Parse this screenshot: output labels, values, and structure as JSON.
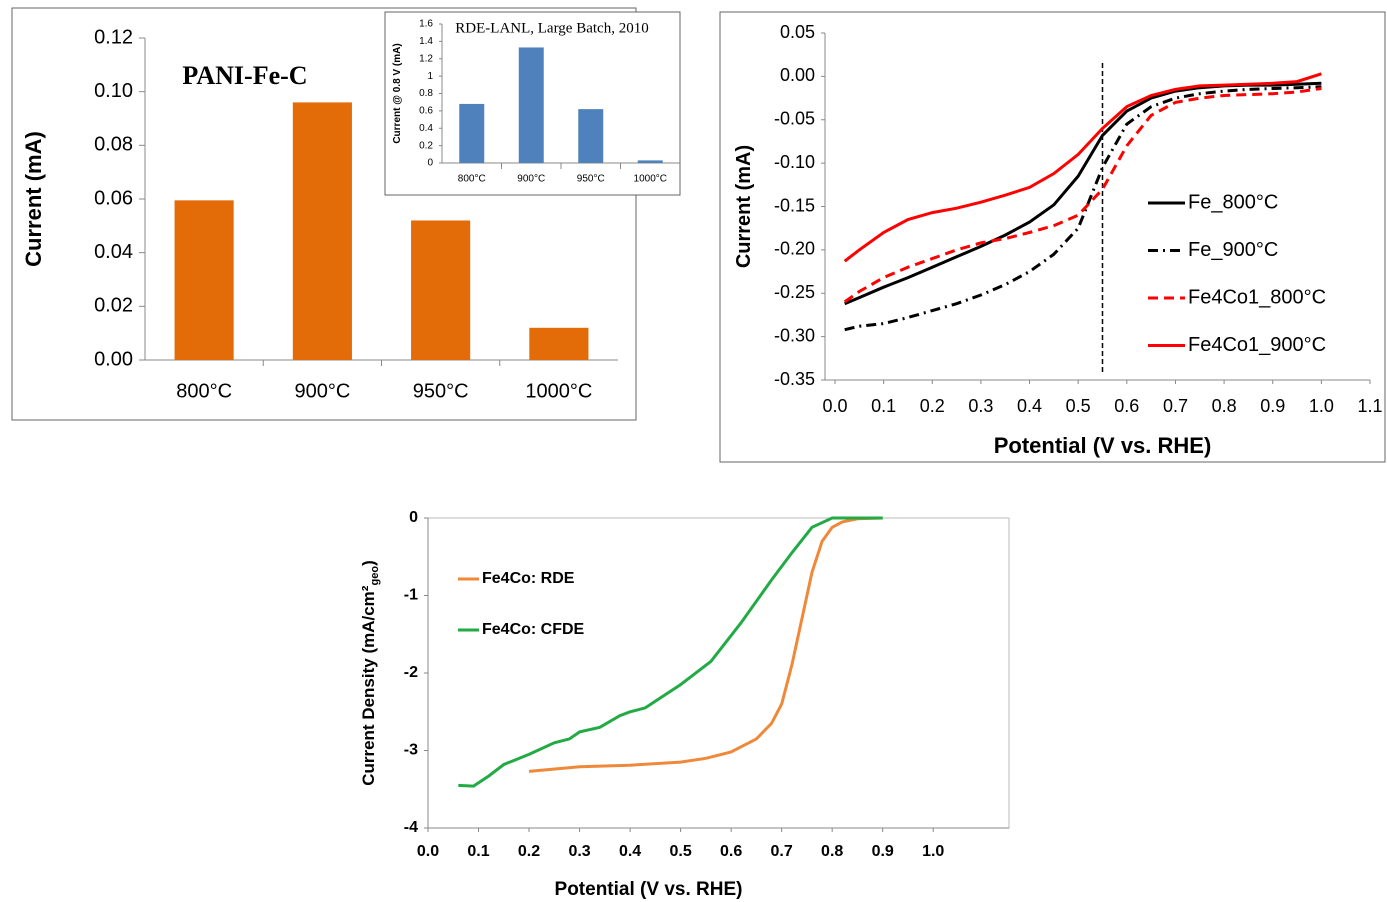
{
  "chart_data": [
    {
      "type": "bar",
      "annotation": "PANI-Fe-C",
      "ylabel": "Current (mA)",
      "categories": [
        "800°C",
        "900°C",
        "950°C",
        "1000°C"
      ],
      "values": [
        0.0595,
        0.096,
        0.052,
        0.012
      ],
      "color": "#e36c09",
      "ylim": [
        0,
        0.12
      ],
      "yticks": [
        {
          "value": 0,
          "label": "0.00"
        },
        0.02,
        0.04,
        0.06,
        0.08,
        {
          "value": 0.1,
          "label": "0.10"
        },
        0.12
      ]
    },
    {
      "type": "bar",
      "title": "RDE-LANL, Large Batch, 2010",
      "ylabel": "Current @ 0.8 V (mA)",
      "categories": [
        "800°C",
        "900°C",
        "950°C",
        "1000°C"
      ],
      "values": [
        0.68,
        1.33,
        0.62,
        0.03
      ],
      "color": "#4f81bd",
      "ylim": [
        0,
        1.6
      ],
      "yticks": [
        0,
        0.2,
        0.4,
        0.6,
        0.8,
        1,
        1.2,
        1.4,
        1.6
      ]
    },
    {
      "type": "line",
      "xlabel": "Potential (V vs. RHE)",
      "ylabel": "Current (mA)",
      "x": [
        0.02,
        0.05,
        0.1,
        0.15,
        0.2,
        0.25,
        0.3,
        0.35,
        0.4,
        0.45,
        0.5,
        0.55,
        0.6,
        0.65,
        0.7,
        0.75,
        0.8,
        0.85,
        0.9,
        0.95,
        1.0
      ],
      "series": [
        {
          "name": "Fe_800°C",
          "color": "#000000",
          "style": "solid",
          "values": [
            -0.262,
            -0.255,
            -0.243,
            -0.232,
            -0.22,
            -0.208,
            -0.196,
            -0.183,
            -0.168,
            -0.148,
            -0.115,
            -0.068,
            -0.04,
            -0.025,
            -0.017,
            -0.013,
            -0.011,
            -0.01,
            -0.01,
            -0.009,
            -0.008
          ]
        },
        {
          "name": "Fe_900°C",
          "color": "#000000",
          "style": "dashdot",
          "values": [
            -0.292,
            -0.288,
            -0.285,
            -0.278,
            -0.27,
            -0.262,
            -0.252,
            -0.24,
            -0.225,
            -0.205,
            -0.175,
            -0.105,
            -0.055,
            -0.035,
            -0.025,
            -0.02,
            -0.017,
            -0.015,
            -0.014,
            -0.013,
            -0.012
          ]
        },
        {
          "name": "Fe4Co1_800°C",
          "color": "#ff0000",
          "style": "dashed",
          "values": [
            -0.26,
            -0.248,
            -0.232,
            -0.22,
            -0.21,
            -0.2,
            -0.192,
            -0.187,
            -0.18,
            -0.172,
            -0.16,
            -0.13,
            -0.08,
            -0.045,
            -0.03,
            -0.025,
            -0.022,
            -0.021,
            -0.02,
            -0.018,
            -0.014
          ]
        },
        {
          "name": "Fe4Co1_900°C",
          "color": "#ff0000",
          "style": "solid",
          "values": [
            -0.213,
            -0.2,
            -0.18,
            -0.165,
            -0.157,
            -0.152,
            -0.145,
            -0.137,
            -0.128,
            -0.112,
            -0.09,
            -0.06,
            -0.035,
            -0.022,
            -0.015,
            -0.011,
            -0.01,
            -0.009,
            -0.008,
            -0.006,
            0.003
          ]
        }
      ],
      "vline": 0.55,
      "xlim": [
        0,
        1.1
      ],
      "xticks": [
        {
          "value": 0,
          "label": "0.0"
        },
        0.1,
        0.2,
        0.3,
        0.4,
        0.5,
        0.6,
        0.7,
        0.8,
        0.9,
        {
          "value": 1,
          "label": "1.0"
        },
        1.1
      ],
      "ylim": [
        -0.35,
        0.05
      ],
      "yticks": [
        0.05,
        {
          "value": 0,
          "label": "0.00"
        },
        -0.05,
        {
          "value": -0.1,
          "label": "-0.10"
        },
        -0.15,
        {
          "value": -0.2,
          "label": "-0.20"
        },
        -0.25,
        {
          "value": -0.3,
          "label": "-0.30"
        },
        -0.35
      ],
      "legend": "right"
    },
    {
      "type": "line",
      "xlabel": "Potential (V vs. RHE)",
      "ylabel": "Current Density (mA/cm²",
      "ylabel_sub": "geo",
      "ylabel_end": ")",
      "series": [
        {
          "name": "Fe4Co: RDE",
          "color": "#f0883a",
          "style": "solid",
          "x": [
            0.2,
            0.3,
            0.4,
            0.5,
            0.55,
            0.6,
            0.65,
            0.68,
            0.7,
            0.72,
            0.74,
            0.76,
            0.78,
            0.8,
            0.82,
            0.85,
            0.9
          ],
          "values": [
            -3.27,
            -3.21,
            -3.19,
            -3.15,
            -3.1,
            -3.02,
            -2.85,
            -2.65,
            -2.4,
            -1.9,
            -1.3,
            -0.7,
            -0.3,
            -0.12,
            -0.05,
            -0.01,
            0
          ]
        },
        {
          "name": "Fe4Co: CFDE",
          "color": "#22aa44",
          "style": "solid",
          "x": [
            0.06,
            0.09,
            0.12,
            0.15,
            0.2,
            0.25,
            0.28,
            0.3,
            0.34,
            0.38,
            0.4,
            0.43,
            0.5,
            0.56,
            0.62,
            0.68,
            0.72,
            0.76,
            0.8,
            0.9
          ],
          "values": [
            -3.45,
            -3.46,
            -3.33,
            -3.18,
            -3.05,
            -2.9,
            -2.85,
            -2.76,
            -2.7,
            -2.55,
            -2.5,
            -2.45,
            -2.15,
            -1.85,
            -1.35,
            -0.8,
            -0.45,
            -0.12,
            0,
            0
          ]
        }
      ],
      "xlim": [
        0,
        1.15
      ],
      "xticks": [
        {
          "value": 0,
          "label": "0.0"
        },
        0.1,
        0.2,
        0.3,
        0.4,
        0.5,
        0.6,
        0.7,
        0.8,
        0.9,
        {
          "value": 1,
          "label": "1.0"
        }
      ],
      "ylim": [
        -4,
        0
      ],
      "yticks": [
        0,
        -1,
        -2,
        -3,
        -4
      ],
      "legend": "upper left"
    }
  ]
}
